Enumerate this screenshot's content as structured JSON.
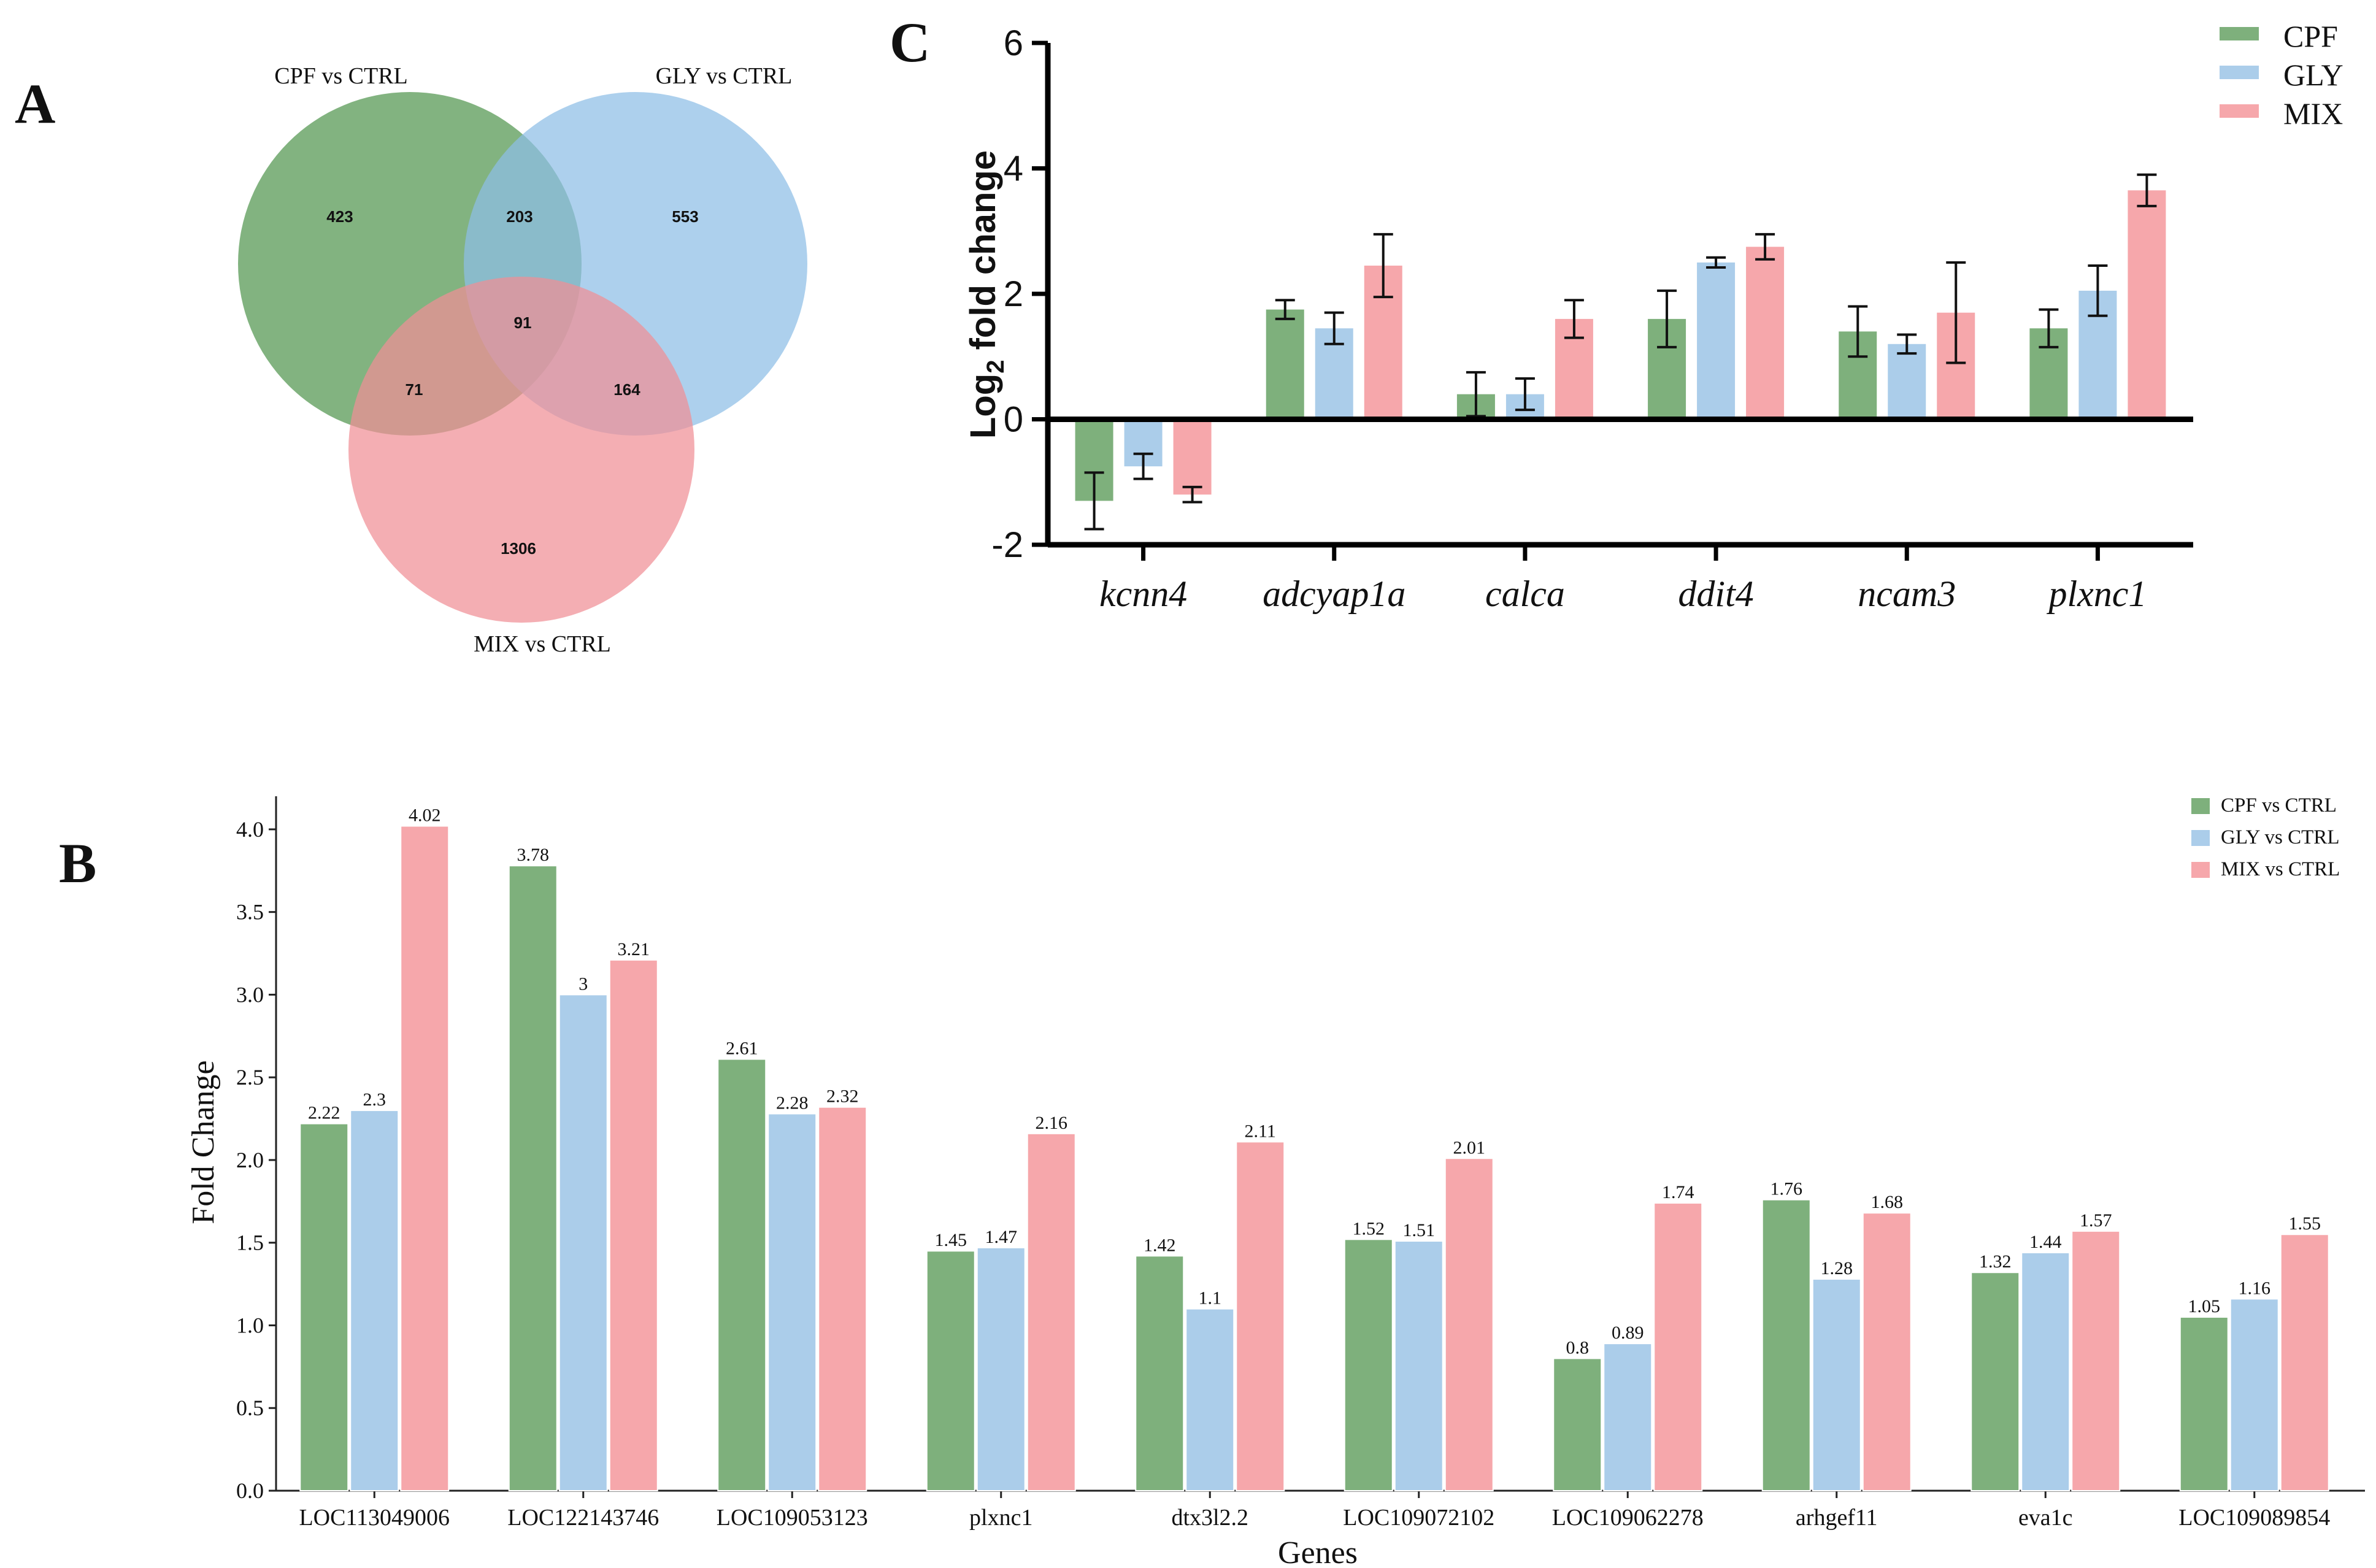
{
  "colors": {
    "cpf": "#7eb07c",
    "gly": "#abcdea",
    "mix": "#f6a7ab",
    "venn_cpf": "#5f9e5c",
    "venn_gly": "#8ebee6",
    "venn_mix": "#f08f96"
  },
  "panel_labels": {
    "a": "A",
    "b": "B",
    "c": "C"
  },
  "chart_data": [
    {
      "panel": "A",
      "type": "venn",
      "sets": [
        "CPF vs CTRL",
        "GLY vs CTRL",
        "MIX vs CTRL"
      ],
      "regions": {
        "cpf_only": "423",
        "gly_only": "553",
        "mix_only": "1306",
        "cpf_gly": "203",
        "cpf_mix": "71",
        "gly_mix": "164",
        "all": "91"
      }
    },
    {
      "panel": "B",
      "type": "bar",
      "xlabel": "Genes",
      "ylabel": "Fold Change",
      "ylim": [
        0,
        4.2
      ],
      "yticks": [
        "0.0",
        "0.5",
        "1.0",
        "1.5",
        "2.0",
        "2.5",
        "3.0",
        "3.5",
        "4.0"
      ],
      "legend_position": "top-right",
      "categories": [
        "LOC113049006",
        "LOC122143746",
        "LOC109053123",
        "plxnc1",
        "dtx3l2.2",
        "LOC109072102",
        "LOC109062278",
        "arhgef11",
        "eva1c",
        "LOC109089854"
      ],
      "series": [
        {
          "name": "CPF vs CTRL",
          "values": [
            2.22,
            3.78,
            2.61,
            1.45,
            1.42,
            1.52,
            0.8,
            1.76,
            1.32,
            1.05
          ]
        },
        {
          "name": "GLY vs CTRL",
          "values": [
            2.3,
            3,
            2.28,
            1.47,
            1.1,
            1.51,
            0.89,
            1.28,
            1.44,
            1.16
          ]
        },
        {
          "name": "MIX vs CTRL",
          "values": [
            4.02,
            3.21,
            2.32,
            2.16,
            2.11,
            2.01,
            1.74,
            1.68,
            1.57,
            1.55
          ]
        }
      ],
      "data_labels": [
        [
          "2.22",
          "3.78",
          "2.61",
          "1.45",
          "1.42",
          "1.52",
          "0.8",
          "1.76",
          "1.32",
          "1.05"
        ],
        [
          "2.3",
          "3",
          "2.28",
          "1.47",
          "1.1",
          "1.51",
          "0.89",
          "1.28",
          "1.44",
          "1.16"
        ],
        [
          "4.02",
          "3.21",
          "2.32",
          "2.16",
          "2.11",
          "2.01",
          "1.74",
          "1.68",
          "1.57",
          "1.55"
        ]
      ]
    },
    {
      "panel": "C",
      "type": "bar",
      "ylabel_main": "Log",
      "ylabel_sub": "2",
      "ylabel_rest": " fold change",
      "ylim": [
        -2,
        6
      ],
      "yticks": [
        "-2",
        "0",
        "2",
        "4",
        "6"
      ],
      "legend_position": "top-right",
      "categories": [
        "kcnn4",
        "adcyap1a",
        "calca",
        "ddit4",
        "ncam3",
        "plxnc1"
      ],
      "series": [
        {
          "name": "CPF",
          "values": [
            -1.3,
            1.75,
            0.4,
            1.6,
            1.4,
            1.45
          ],
          "errors": [
            0.45,
            0.15,
            0.35,
            0.45,
            0.4,
            0.3
          ]
        },
        {
          "name": "GLY",
          "values": [
            -0.75,
            1.45,
            0.4,
            2.5,
            1.2,
            2.05
          ],
          "errors": [
            0.2,
            0.25,
            0.25,
            0.08,
            0.15,
            0.4
          ]
        },
        {
          "name": "MIX",
          "values": [
            -1.2,
            2.45,
            1.6,
            2.75,
            1.7,
            3.65
          ],
          "errors": [
            0.12,
            0.5,
            0.3,
            0.2,
            0.8,
            0.25
          ]
        }
      ]
    }
  ]
}
